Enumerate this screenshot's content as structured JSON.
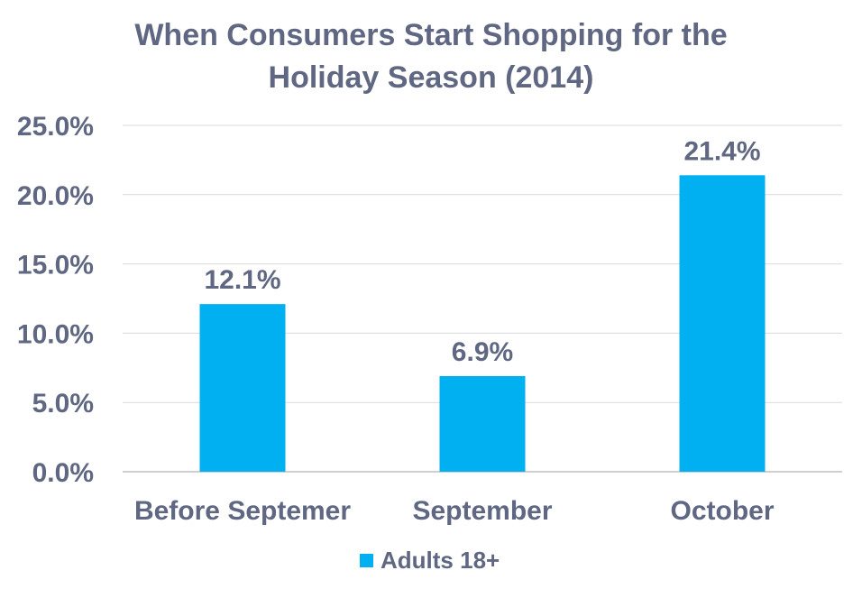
{
  "chart_data": {
    "type": "bar",
    "title_lines": [
      "When Consumers Start Shopping for the",
      "Holiday Season (2014)"
    ],
    "categories": [
      "Before Septemer",
      "September",
      "October"
    ],
    "series": [
      {
        "name": "Adults 18+",
        "values": [
          12.1,
          6.9,
          21.4
        ],
        "value_labels": [
          "12.1%",
          "6.9%",
          "21.4%"
        ],
        "color": "#00b0f0"
      }
    ],
    "ylim": [
      0,
      25
    ],
    "y_ticks": [
      0,
      5,
      10,
      15,
      20,
      25
    ],
    "y_tick_labels": [
      "0.0%",
      "5.0%",
      "10.0%",
      "15.0%",
      "20.0%",
      "25.0%"
    ],
    "grid": true,
    "legend_position": "bottom-center",
    "colors": {
      "bar": "#00b0f0",
      "text": "#5f6782",
      "grid": "#d9d9d9",
      "axis": "#bfbfbf"
    }
  }
}
